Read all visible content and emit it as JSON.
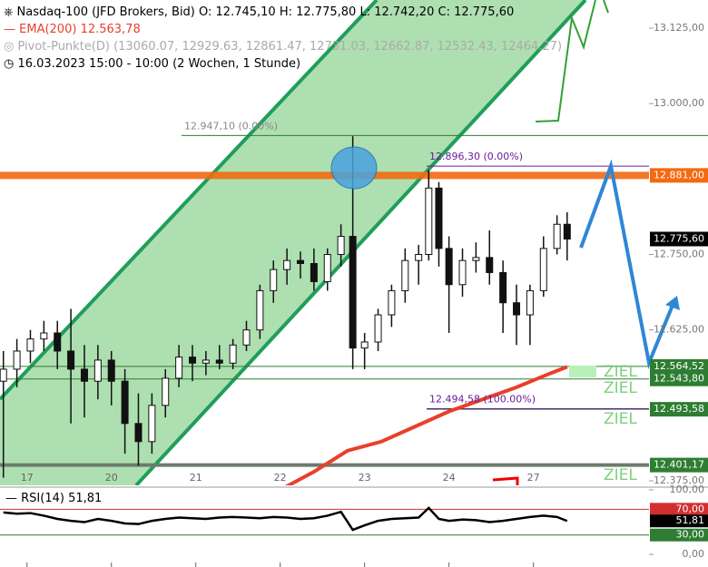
{
  "chart_data": {
    "type": "candlestick",
    "title": "Nasdaq-100 (JFD Brokers, Bid)",
    "ohlc_text": [
      "O: 12.745,10",
      "H: 12.775,80",
      "L: 12.742,20",
      "C: 12.775,60"
    ],
    "ema_legend": {
      "name": "EMA(200)",
      "value": "12.563,78",
      "color": "#e8402a"
    },
    "pivot_legend": "Pivot-Punkte(D)  (13060.07,  12929.63,  12861.47,  12731.03,  12662.87,  12532.43,  12464.27)",
    "range_text": "16.03.2023 15:00 - 10:00  (2 Wochen, 1 Stunde)",
    "xlim": [
      -0.32,
      7.37
    ],
    "xticks": [
      {
        "value": 0,
        "label": "17"
      },
      {
        "value": 1,
        "label": "20"
      },
      {
        "value": 2,
        "label": "21"
      },
      {
        "value": 3,
        "label": "22"
      },
      {
        "value": 4,
        "label": "23"
      },
      {
        "value": 5,
        "label": "24"
      },
      {
        "value": 6,
        "label": "27"
      }
    ],
    "ylim": [
      12367.5,
      13171.6
    ],
    "yticks": [
      {
        "value": 13125,
        "label": "13.125,00"
      },
      {
        "value": 13000,
        "label": "13.000,00"
      },
      {
        "value": 12750,
        "label": "12.750,00"
      },
      {
        "value": 12625,
        "label": "12.625,00"
      },
      {
        "value": 12375,
        "label": "12.375,00"
      }
    ],
    "x": [
      -0.28,
      -0.12,
      0.04,
      0.2,
      0.36,
      0.52,
      0.68,
      0.84,
      1.0,
      1.16,
      1.32,
      1.48,
      1.64,
      1.8,
      1.96,
      2.12,
      2.28,
      2.44,
      2.6,
      2.76,
      2.92,
      3.08,
      3.24,
      3.4,
      3.56,
      3.72,
      3.86,
      4.0,
      4.16,
      4.32,
      4.48,
      4.64,
      4.76,
      4.88,
      5.0,
      5.16,
      5.32,
      5.48,
      5.64,
      5.8,
      5.96,
      6.12,
      6.28,
      6.4
    ],
    "open": [
      12540,
      12560,
      12590,
      12610,
      12620,
      12590,
      12560,
      12540,
      12575,
      12540,
      12470,
      12440,
      12500,
      12545,
      12580,
      12570,
      12575,
      12570,
      12600,
      12625,
      12690,
      12725,
      12740,
      12735,
      12705,
      12750,
      12780,
      12595,
      12605,
      12650,
      12690,
      12740,
      12750,
      12860,
      12760,
      12700,
      12740,
      12745,
      12720,
      12670,
      12650,
      12690,
      12760,
      12800
    ],
    "high": [
      12590,
      12610,
      12625,
      12640,
      12640,
      12660,
      12600,
      12600,
      12590,
      12560,
      12520,
      12520,
      12560,
      12600,
      12600,
      12590,
      12600,
      12610,
      12640,
      12700,
      12740,
      12760,
      12755,
      12760,
      12760,
      12800,
      12946,
      12620,
      12660,
      12700,
      12760,
      12766,
      12890,
      12870,
      12780,
      12760,
      12770,
      12790,
      12740,
      12700,
      12700,
      12780,
      12815,
      12820
    ],
    "low": [
      12380,
      12530,
      12570,
      12590,
      12560,
      12470,
      12480,
      12510,
      12500,
      12420,
      12400,
      12420,
      12480,
      12530,
      12540,
      12550,
      12560,
      12560,
      12590,
      12610,
      12670,
      12700,
      12710,
      12690,
      12690,
      12730,
      12560,
      12560,
      12590,
      12630,
      12670,
      12700,
      12740,
      12730,
      12620,
      12680,
      12720,
      12700,
      12620,
      12600,
      12600,
      12680,
      12750,
      12740
    ],
    "close": [
      12560,
      12590,
      12610,
      12620,
      12590,
      12560,
      12540,
      12575,
      12540,
      12470,
      12440,
      12500,
      12545,
      12580,
      12570,
      12575,
      12570,
      12600,
      12625,
      12690,
      12725,
      12740,
      12735,
      12705,
      12750,
      12780,
      12595,
      12605,
      12650,
      12690,
      12740,
      12750,
      12860,
      12760,
      12700,
      12740,
      12745,
      12720,
      12670,
      12650,
      12690,
      12760,
      12800,
      12775.6
    ],
    "ema": {
      "x": [
        3.0,
        3.4,
        3.8,
        4.2,
        4.6,
        5.0,
        5.4,
        5.8,
        6.2,
        6.4
      ],
      "values": [
        12360,
        12390,
        12425,
        12440,
        12465,
        12490,
        12510,
        12530,
        12553,
        12563.78
      ],
      "color": "#e8402a"
    },
    "levels": [
      {
        "value": 12881,
        "label": "12.881,00",
        "color": "#f26a12"
      },
      {
        "value": 12775.6,
        "label": "12.775,60",
        "color": "#000000"
      },
      {
        "value": 12564.52,
        "label": "12.564,52",
        "color": "#2e7d32"
      },
      {
        "value": 12543.8,
        "label": "12.543,80",
        "color": "#2e7d32"
      },
      {
        "value": 12493.58,
        "label": "12.493,58",
        "color": "#2e7d32"
      },
      {
        "value": 12401.17,
        "label": "12.401,17",
        "color": "#2e7d32"
      }
    ],
    "fib": [
      {
        "value": 12947.1,
        "label": "12.947,10 (0.00%)"
      },
      {
        "value": 12896.3,
        "label": "12.896,30 (0.00%)"
      },
      {
        "value": 12494.58,
        "label": "12.494,58 (100.00%)"
      }
    ],
    "targets": [
      "ZIEL",
      "ZIEL",
      "ZIEL",
      "ZIEL"
    ],
    "rsi": {
      "name": "RSI(14)",
      "value_text": "51,81",
      "ylim": [
        -19.6,
        102.8
      ],
      "yticks": [
        {
          "value": 100,
          "label": "100,00"
        },
        {
          "value": 0,
          "label": "0,00"
        }
      ],
      "levels": [
        {
          "value": 70,
          "label": "70,00",
          "color": "#d32f2f"
        },
        {
          "value": 51.81,
          "label": "51,81",
          "color": "#000000"
        },
        {
          "value": 30,
          "label": "30,00",
          "color": "#2e7d32"
        }
      ],
      "values": [
        65,
        63,
        64,
        60,
        55,
        52,
        50,
        55,
        52,
        48,
        47,
        52,
        55,
        57,
        56,
        55,
        57,
        58,
        57,
        56,
        58,
        57,
        55,
        56,
        60,
        66,
        38,
        45,
        52,
        55,
        56,
        57,
        72,
        55,
        52,
        54,
        53,
        50,
        52,
        55,
        58,
        60,
        58,
        51.81
      ]
    }
  }
}
